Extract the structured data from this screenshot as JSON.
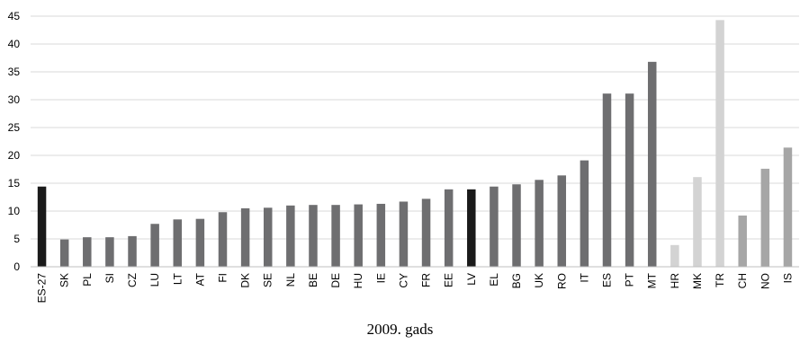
{
  "chart_data": {
    "type": "bar",
    "caption": "2009. gads",
    "categories": [
      "ES-27",
      "SK",
      "PL",
      "SI",
      "CZ",
      "LU",
      "LT",
      "AT",
      "FI",
      "DK",
      "SE",
      "NL",
      "BE",
      "DE",
      "HU",
      "IE",
      "CY",
      "FR",
      "EE",
      "LV",
      "EL",
      "BG",
      "UK",
      "RO",
      "IT",
      "ES",
      "PT",
      "MT",
      "HR",
      "MK",
      "TR",
      "CH",
      "NO",
      "IS"
    ],
    "values": [
      14.4,
      4.9,
      5.3,
      5.3,
      5.5,
      7.7,
      8.5,
      8.6,
      9.8,
      10.5,
      10.6,
      11.0,
      11.1,
      11.1,
      11.2,
      11.3,
      11.7,
      12.2,
      13.9,
      13.9,
      14.4,
      14.8,
      15.6,
      16.4,
      19.1,
      31.1,
      31.1,
      36.8,
      3.9,
      16.1,
      44.3,
      9.2,
      17.6,
      21.4
    ],
    "colors": [
      "#1a1a1a",
      "#6e6e70",
      "#6e6e70",
      "#6e6e70",
      "#6e6e70",
      "#6e6e70",
      "#6e6e70",
      "#6e6e70",
      "#6e6e70",
      "#6e6e70",
      "#6e6e70",
      "#6e6e70",
      "#6e6e70",
      "#6e6e70",
      "#6e6e70",
      "#6e6e70",
      "#6e6e70",
      "#6e6e70",
      "#6e6e70",
      "#1a1a1a",
      "#6e6e70",
      "#6e6e70",
      "#6e6e70",
      "#6e6e70",
      "#6e6e70",
      "#6e6e70",
      "#6e6e70",
      "#6e6e70",
      "#d3d3d3",
      "#d3d3d3",
      "#d3d3d3",
      "#a6a6a6",
      "#a6a6a6",
      "#a6a6a6"
    ],
    "ylim": [
      0,
      45
    ],
    "yticks": [
      0,
      5,
      10,
      15,
      20,
      25,
      30,
      35,
      40,
      45
    ],
    "grid": true,
    "legend": "none"
  }
}
